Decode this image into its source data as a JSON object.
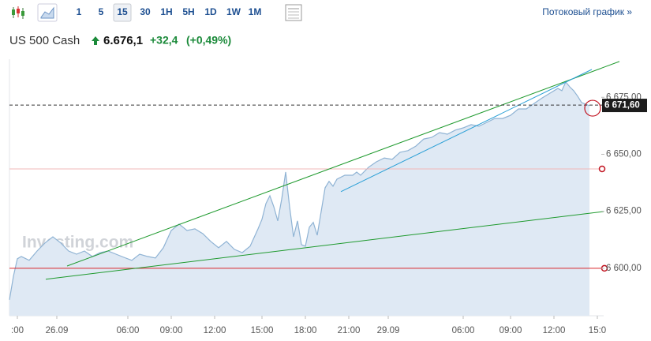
{
  "toolbar": {
    "buttons": [
      "1",
      "5",
      "15",
      "30",
      "1H",
      "5H",
      "1D",
      "1W",
      "1M"
    ],
    "selected": "15",
    "streaming_link": "Потоковый график »"
  },
  "quote": {
    "name": "US 500 Cash",
    "price": "6.676,1",
    "change": "+32,4",
    "change_pct": "(+0,49%)"
  },
  "chart_data": {
    "type": "area",
    "watermark": "Investing.com",
    "color": "#8fb3d4",
    "fill": "#dfe9f4",
    "x": [
      0,
      1,
      2,
      3,
      5,
      7,
      9,
      11,
      13,
      15,
      17,
      19,
      21,
      23,
      25,
      27,
      29,
      31,
      33,
      35,
      37,
      39,
      41,
      43,
      45,
      47,
      49,
      51,
      53,
      55,
      57,
      59,
      61,
      63,
      64,
      65,
      66,
      67,
      68,
      69,
      70,
      71,
      72,
      73,
      74,
      75,
      76,
      77,
      78,
      79,
      80,
      81,
      82,
      83,
      85,
      87,
      88,
      89,
      91,
      93,
      95,
      97,
      99,
      101,
      103,
      105,
      107,
      109,
      111,
      113,
      115,
      117,
      119,
      121,
      123,
      125,
      127,
      129,
      131,
      133,
      135,
      137,
      139,
      140,
      141,
      142,
      143,
      144,
      145,
      147
    ],
    "values": [
      6586.2,
      6596.5,
      6604.2,
      6605.2,
      6603.5,
      6607.6,
      6611.1,
      6613.8,
      6611.1,
      6607.6,
      6606.2,
      6607.6,
      6605.2,
      6606.9,
      6607.6,
      6606.2,
      6604.8,
      6603.5,
      6606.2,
      6605.2,
      6604.5,
      6609.0,
      6616.6,
      6619.4,
      6616.6,
      6617.3,
      6615.2,
      6611.8,
      6609.0,
      6611.8,
      6608.3,
      6606.9,
      6609.7,
      6617.3,
      6621.5,
      6628.4,
      6631.8,
      6627.0,
      6620.8,
      6630.4,
      6642.2,
      6627.0,
      6613.8,
      6620.8,
      6610.4,
      6609.7,
      6618.0,
      6620.1,
      6614.5,
      6624.9,
      6635.3,
      6638.1,
      6636.0,
      6639.1,
      6640.8,
      6640.8,
      6642.2,
      6640.8,
      6644.3,
      6646.7,
      6648.4,
      6647.8,
      6650.9,
      6651.6,
      6653.6,
      6656.7,
      6657.4,
      6659.5,
      6658.8,
      6660.6,
      6661.6,
      6663.0,
      6662.3,
      6664.0,
      6665.7,
      6665.7,
      6667.1,
      6669.9,
      6669.9,
      6672.3,
      6674.7,
      6676.8,
      6678.9,
      6677.9,
      6681.7,
      6679.6,
      6677.9,
      6675.5,
      6672.7,
      6671.3
    ],
    "xlim": [
      0,
      150
    ],
    "ylim": [
      6579.2,
      6691.7
    ],
    "xticks": [
      {
        "value": 2,
        "label": ":00"
      },
      {
        "value": 12,
        "label": "26.09"
      },
      {
        "value": 30,
        "label": "06:00"
      },
      {
        "value": 41,
        "label": "09:00"
      },
      {
        "value": 52,
        "label": "12:00"
      },
      {
        "value": 64,
        "label": "15:00"
      },
      {
        "value": 75,
        "label": "18:00"
      },
      {
        "value": 86,
        "label": "21:00"
      },
      {
        "value": 96,
        "label": "29.09"
      },
      {
        "value": 115,
        "label": "06:00"
      },
      {
        "value": 127,
        "label": "09:00"
      },
      {
        "value": 138,
        "label": "12:00"
      },
      {
        "value": 149,
        "label": "15:0"
      }
    ],
    "yticks": [
      {
        "value": 6675,
        "label": "6 675,00"
      },
      {
        "value": 6650,
        "label": "6 650,00"
      },
      {
        "value": 6625,
        "label": "6 625,00"
      },
      {
        "value": 6600,
        "label": "6 600,00"
      }
    ],
    "last_price": {
      "value": 6671.6,
      "label": "6 671,60"
    },
    "levels": [
      {
        "value": 6643.6,
        "color": "#f2b8b8"
      },
      {
        "value": 6600,
        "color": "#d9262b"
      }
    ],
    "trendlines": [
      {
        "color": "#1f9a2e",
        "x": [
          14.6,
          154.6
        ],
        "y": [
          6601.0,
          6690.7
        ]
      },
      {
        "color": "#1f9a2e",
        "x": [
          9.2,
          150.6
        ],
        "y": [
          6595.2,
          6624.9
        ]
      },
      {
        "color": "#2a9fd6",
        "x": [
          84,
          147.6
        ],
        "y": [
          6633.6,
          6687.2
        ]
      }
    ],
    "grid": false
  }
}
